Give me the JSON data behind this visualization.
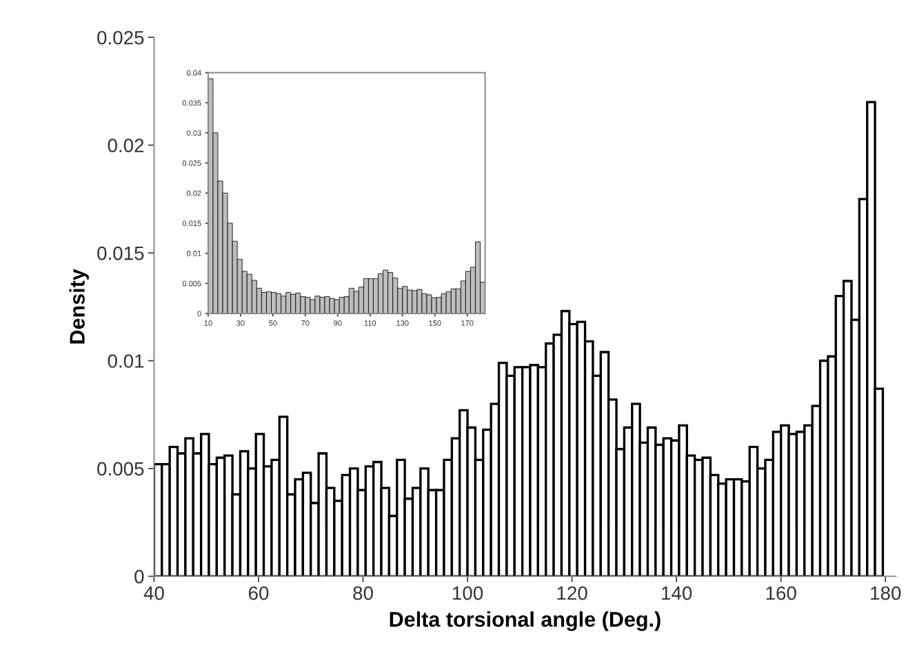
{
  "chart_data": [
    {
      "type": "histogram",
      "xlabel": "Delta torsional angle (Deg.)",
      "ylabel": "Density",
      "color": "#ffffff",
      "bins": [
        40,
        41.5,
        43,
        44.5,
        46,
        47.5,
        49,
        50.5,
        52,
        53.5,
        55,
        56.5,
        58,
        59.5,
        61,
        62.5,
        64,
        65.5,
        67,
        68.5,
        70,
        71.5,
        73,
        74.5,
        76,
        77.5,
        79,
        80.5,
        82,
        83.5,
        85,
        86.5,
        88,
        89.5,
        91,
        92.5,
        94,
        95.5,
        97,
        98.5,
        100,
        101.5,
        103,
        104.5,
        106,
        107.5,
        109,
        110.5,
        112,
        113.5,
        115,
        116.5,
        118,
        119.5,
        121,
        122.5,
        124,
        125.5,
        127,
        128.5,
        130,
        131.5,
        133,
        134.5,
        136,
        137.5,
        139,
        140.5,
        142,
        143.5,
        145,
        146.5,
        148,
        149.5,
        151,
        152.5,
        154,
        155.5,
        157,
        158.5,
        160,
        161.5,
        163,
        164.5,
        166,
        167.5,
        169,
        170.5,
        172,
        173.5,
        175,
        176.5,
        178,
        179.5
      ],
      "values": [
        0.0052,
        0.0052,
        0.006,
        0.0057,
        0.0064,
        0.0057,
        0.0066,
        0.0052,
        0.0055,
        0.0056,
        0.0038,
        0.0058,
        0.005,
        0.0066,
        0.0051,
        0.0054,
        0.0074,
        0.0038,
        0.0045,
        0.0048,
        0.0034,
        0.0057,
        0.0041,
        0.0035,
        0.0047,
        0.005,
        0.004,
        0.0051,
        0.0053,
        0.0041,
        0.0028,
        0.0054,
        0.0036,
        0.0041,
        0.005,
        0.004,
        0.004,
        0.0054,
        0.0064,
        0.0077,
        0.0069,
        0.0054,
        0.0068,
        0.008,
        0.0099,
        0.0093,
        0.0097,
        0.0097,
        0.0098,
        0.0097,
        0.0108,
        0.0112,
        0.0123,
        0.0117,
        0.0118,
        0.0109,
        0.0093,
        0.0104,
        0.0082,
        0.0059,
        0.0069,
        0.008,
        0.0062,
        0.0069,
        0.0061,
        0.0064,
        0.0063,
        0.007,
        0.0056,
        0.0054,
        0.0055,
        0.0047,
        0.0043,
        0.0045,
        0.0045,
        0.0044,
        0.006,
        0.005,
        0.0054,
        0.0067,
        0.007,
        0.0066,
        0.0067,
        0.007,
        0.0079,
        0.01,
        0.0102,
        0.013,
        0.0137,
        0.0119,
        0.0175,
        0.022,
        0.0087
      ],
      "xlim": [
        40,
        182
      ],
      "xticks": [
        40,
        60,
        80,
        100,
        120,
        140,
        160,
        180
      ],
      "ylim": [
        0,
        0.025
      ],
      "yticks": [
        0,
        0.005,
        0.01,
        0.015,
        0.02,
        0.025
      ],
      "grid": false,
      "legend": false
    },
    {
      "type": "histogram",
      "color": "#bdbdbd",
      "bins": [
        10,
        13,
        16,
        19,
        22,
        25,
        28,
        31,
        34,
        37,
        40,
        43,
        46,
        49,
        52,
        55,
        58,
        61,
        64,
        67,
        70,
        73,
        76,
        79,
        82,
        85,
        88,
        91,
        94,
        97,
        100,
        103,
        106,
        109,
        112,
        115,
        118,
        121,
        124,
        127,
        130,
        133,
        136,
        139,
        142,
        145,
        148,
        151,
        154,
        157,
        160,
        163,
        166,
        169,
        172,
        175,
        178,
        181
      ],
      "values": [
        0.039,
        0.03,
        0.022,
        0.02,
        0.015,
        0.012,
        0.009,
        0.007,
        0.0065,
        0.0055,
        0.0042,
        0.0035,
        0.0036,
        0.0035,
        0.0033,
        0.0029,
        0.0035,
        0.0032,
        0.0034,
        0.0028,
        0.0027,
        0.0023,
        0.0029,
        0.0027,
        0.0028,
        0.0025,
        0.0023,
        0.0027,
        0.0028,
        0.0042,
        0.0037,
        0.0044,
        0.0058,
        0.0058,
        0.0058,
        0.0066,
        0.0072,
        0.0068,
        0.0059,
        0.0042,
        0.0045,
        0.0039,
        0.0038,
        0.004,
        0.0033,
        0.0031,
        0.0026,
        0.0027,
        0.0033,
        0.0036,
        0.0041,
        0.0041,
        0.0054,
        0.007,
        0.0077,
        0.0119,
        0.0052
      ],
      "xlim": [
        10,
        181
      ],
      "xticks": [
        10,
        30,
        50,
        70,
        90,
        110,
        130,
        150,
        170
      ],
      "ylim": [
        0,
        0.04
      ],
      "yticks": [
        0,
        0.005,
        0.01,
        0.015,
        0.02,
        0.025,
        0.03,
        0.035,
        0.04
      ],
      "grid": false,
      "legend": false
    }
  ]
}
